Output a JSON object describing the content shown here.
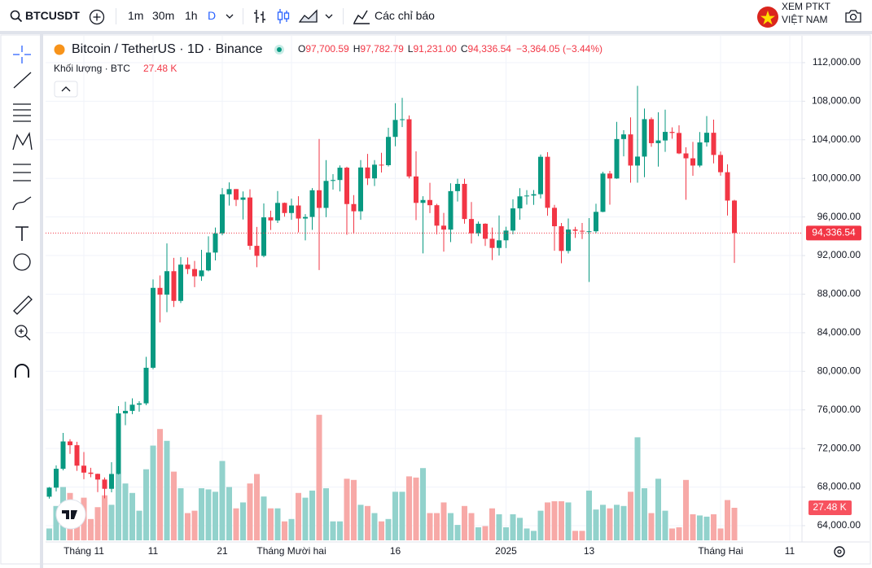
{
  "toolbar": {
    "symbol": "BTCUSDT",
    "intervals": [
      "1m",
      "30m",
      "1h",
      "D"
    ],
    "indicators": "Các chỉ báo",
    "promo": [
      "XEM PTKT",
      "VIỆT NAM"
    ]
  },
  "chart_data": {
    "type": "candlestick",
    "legend": {
      "title": "Bitcoin / TetherUS · 1D · Binance",
      "o": "O",
      "open": "97,700.59",
      "h": "H",
      "high": "97,782.79",
      "l": "L",
      "low": "91,231.00",
      "c": "C",
      "close": "94,336.54",
      "change": "−3,364.05 (−3.44%)",
      "volume_title": "Khối lượng · BTC",
      "volume": "27.48 K"
    },
    "categories": [
      null,
      null,
      null,
      null,
      null,
      "Tháng 11",
      null,
      null,
      null,
      null,
      null,
      null,
      null,
      null,
      null,
      "11",
      null,
      null,
      null,
      null,
      null,
      null,
      null,
      null,
      null,
      "21",
      null,
      null,
      null,
      null,
      null,
      null,
      null,
      null,
      null,
      "Tháng Mười hai",
      null,
      null,
      null,
      null,
      null,
      null,
      null,
      null,
      null,
      null,
      null,
      null,
      null,
      null,
      "16",
      null,
      null,
      null,
      null,
      null,
      null,
      null,
      null,
      null,
      null,
      null,
      null,
      null,
      null,
      null,
      "2025",
      null,
      null,
      null,
      null,
      null,
      null,
      null,
      null,
      null,
      null,
      null,
      "13",
      null,
      null,
      null,
      null,
      null,
      null,
      null,
      null,
      null,
      null,
      null,
      null,
      null,
      null,
      null,
      null,
      null,
      null,
      "Tháng Hai",
      null,
      null,
      null,
      null,
      null,
      null,
      null,
      null,
      null,
      "11"
    ],
    "open": [
      67000,
      67940,
      69900,
      72730,
      72340,
      70220,
      69500,
      69370,
      68780,
      67820,
      69360,
      75640,
      75900,
      76540,
      76680,
      80370,
      88650,
      87950,
      90380,
      87300,
      91060,
      90600,
      89850,
      90460,
      92310,
      94290,
      98350,
      98890,
      97780,
      98020,
      93010,
      91970,
      95960,
      95640,
      97460,
      96410,
      97190,
      95840,
      96000,
      98770,
      96940,
      99740,
      99830,
      101110,
      97340,
      96590,
      101130,
      100000,
      101420,
      101370,
      104300,
      106060,
      106130,
      100200,
      97460,
      97760,
      97220,
      95100,
      94690,
      98680,
      99430,
      95790,
      94300,
      95300,
      93740,
      92790,
      93580,
      94590,
      96890,
      98140,
      98220,
      98360,
      102240,
      96950,
      95040,
      92480,
      94700,
      94570,
      94510,
      94520,
      96530,
      100500,
      99990,
      104080,
      104560,
      101330,
      102260,
      106140,
      103650,
      103930,
      104820,
      104710,
      102590,
      102080,
      101330,
      103730,
      104730,
      102430,
      100640,
      97700.59,
      null,
      null,
      null,
      null,
      null,
      null,
      null,
      null
    ],
    "high": [
      68000,
      70250,
      73620,
      72960,
      72700,
      71630,
      70000,
      69400,
      69000,
      70580,
      76400,
      76850,
      77200,
      76900,
      81500,
      89530,
      89940,
      93260,
      91760,
      91850,
      91800,
      91450,
      92590,
      94000,
      94900,
      99000,
      99590,
      98900,
      98650,
      98870,
      94970,
      97400,
      96650,
      98690,
      97500,
      97900,
      98150,
      96300,
      99000,
      104090,
      101900,
      100440,
      101350,
      101210,
      98270,
      101900,
      102540,
      101900,
      102650,
      105250,
      107790,
      108350,
      106520,
      102800,
      98150,
      99540,
      97360,
      96420,
      99490,
      99960,
      99960,
      97550,
      95530,
      95350,
      94900,
      96160,
      94990,
      97840,
      98980,
      98780,
      98800,
      102480,
      102720,
      97260,
      95380,
      95840,
      94980,
      95380,
      95880,
      97370,
      100680,
      100780,
      105860,
      104990,
      106320,
      109590,
      107240,
      106320,
      106850,
      107120,
      105290,
      105500,
      103220,
      103780,
      104800,
      106460,
      106090,
      102780,
      101460,
      97782.79,
      null,
      null,
      null,
      null,
      null,
      null,
      null,
      null
    ],
    "low": [
      66800,
      67550,
      69730,
      71440,
      69680,
      68820,
      69020,
      67480,
      66840,
      67460,
      69300,
      74420,
      75560,
      75820,
      76490,
      80220,
      85070,
      86130,
      86670,
      87080,
      90090,
      88720,
      89380,
      90370,
      91500,
      94100,
      97180,
      97130,
      95740,
      92600,
      90790,
      91820,
      94650,
      95380,
      96030,
      95700,
      94400,
      93580,
      94660,
      90500,
      95980,
      98840,
      98650,
      94150,
      94260,
      95700,
      99310,
      99210,
      100610,
      101230,
      103330,
      105320,
      100000,
      95670,
      92230,
      96400,
      94200,
      92400,
      93400,
      97600,
      95300,
      93250,
      94010,
      93000,
      91530,
      92000,
      92770,
      94200,
      95720,
      97280,
      97260,
      97920,
      96130,
      92500,
      91200,
      92210,
      93830,
      93710,
      89260,
      94310,
      96500,
      97280,
      99950,
      102280,
      99550,
      99550,
      100120,
      103280,
      101220,
      102750,
      104110,
      102520,
      97780,
      100270,
      101160,
      103300,
      101560,
      100280,
      96150,
      91231,
      null,
      null,
      null,
      null,
      null,
      null,
      null,
      null
    ],
    "close": [
      67940,
      69900,
      72730,
      72340,
      70220,
      69500,
      69370,
      68780,
      67820,
      69360,
      75640,
      75900,
      76540,
      76680,
      80370,
      88650,
      87950,
      90380,
      87300,
      91060,
      90600,
      89850,
      90460,
      92310,
      94290,
      98350,
      98890,
      97780,
      98020,
      93010,
      91970,
      95960,
      95640,
      97460,
      96410,
      97190,
      95840,
      96000,
      98770,
      96940,
      99740,
      99830,
      101110,
      97340,
      96590,
      101130,
      100000,
      101420,
      101370,
      104300,
      106060,
      106130,
      100200,
      97460,
      97760,
      97220,
      95100,
      94690,
      98680,
      99430,
      95790,
      94300,
      95300,
      93740,
      92790,
      93580,
      94590,
      96890,
      98140,
      98220,
      98360,
      102240,
      96950,
      95040,
      92480,
      94700,
      94570,
      94510,
      94520,
      96530,
      100500,
      99990,
      104080,
      104560,
      101330,
      102260,
      106140,
      103650,
      103930,
      104820,
      104710,
      102590,
      102080,
      101330,
      103730,
      104730,
      102430,
      100640,
      97700.59,
      94336.54,
      null,
      null,
      null,
      null,
      null,
      null,
      null,
      null
    ],
    "volume": [
      10,
      29,
      45,
      40,
      30,
      36,
      18,
      28,
      38,
      30,
      56,
      48,
      40,
      25,
      60,
      80,
      94,
      84,
      58,
      44,
      23,
      25,
      44,
      43,
      41,
      67,
      45,
      27,
      32,
      48,
      56,
      37,
      27,
      27,
      16,
      18,
      40,
      36,
      42,
      106,
      44,
      16,
      16,
      52,
      51,
      30,
      29,
      23,
      16,
      18,
      41,
      41,
      54,
      53,
      61,
      23,
      23,
      32,
      23,
      13,
      29,
      23,
      11,
      12,
      27,
      22,
      11,
      22,
      19,
      10,
      8,
      25,
      32,
      33,
      33,
      32,
      8,
      8,
      42,
      26,
      30,
      27,
      30,
      29,
      41,
      87,
      44,
      23,
      52,
      25,
      10,
      11,
      51,
      22,
      21,
      20,
      22,
      10,
      34,
      27.48,
      null,
      null,
      null,
      null,
      null,
      null,
      null,
      null
    ],
    "up_color": "#089981",
    "down_color": "#f23645",
    "up_volume_color": "#92d2cc",
    "down_volume_color": "#f7a9a7",
    "ylim": [
      62480,
      114780
    ],
    "yticks": [
      {
        "value": 64000,
        "label": "64,000.00"
      },
      {
        "value": 68000,
        "label": "68,000.00"
      },
      {
        "value": 72000,
        "label": "72,000.00"
      },
      {
        "value": 76000,
        "label": "76,000.00"
      },
      {
        "value": 80000,
        "label": "80,000.00"
      },
      {
        "value": 84000,
        "label": "84,000.00"
      },
      {
        "value": 88000,
        "label": "88,000.00"
      },
      {
        "value": 92000,
        "label": "92,000.00"
      },
      {
        "value": 96000,
        "label": "96,000.00"
      },
      {
        "value": 100000,
        "label": "100,000.00"
      },
      {
        "value": 104000,
        "label": "104,000.00"
      },
      {
        "value": 108000,
        "label": "108,000.00"
      },
      {
        "value": 112000,
        "label": "112,000.00"
      }
    ],
    "y2lim": [
      0,
      426
    ],
    "grid": true
  }
}
